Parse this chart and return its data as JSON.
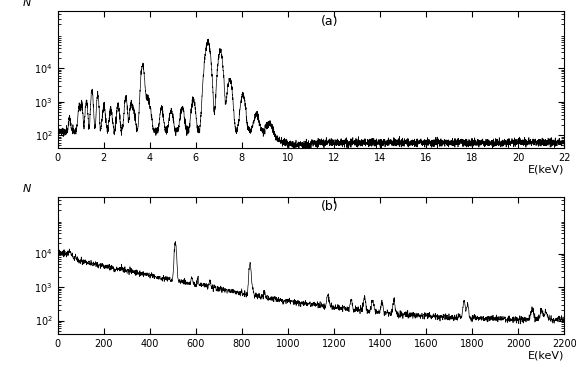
{
  "plot_a": {
    "label": "(a)",
    "xlabel": "E(keV)",
    "ylabel": "N",
    "xlim": [
      0,
      22
    ],
    "ylim_log": [
      40,
      500000
    ],
    "xticks": [
      0,
      2,
      4,
      6,
      8,
      10,
      12,
      14,
      16,
      18,
      20,
      22
    ],
    "yticks_log": [
      100,
      1000,
      10000
    ]
  },
  "plot_b": {
    "label": "(b)",
    "xlabel": "E(keV)",
    "ylabel": "N",
    "xlim": [
      0,
      2200
    ],
    "ylim_log": [
      40,
      500000
    ],
    "xticks": [
      0,
      200,
      400,
      600,
      800,
      1000,
      1200,
      1400,
      1600,
      1800,
      2000,
      2200
    ],
    "yticks_log": [
      100,
      1000,
      10000
    ]
  },
  "line_color": "#000000",
  "line_width": 0.5,
  "bg_color": "#ffffff",
  "tick_fontsize": 7,
  "label_fontsize": 8,
  "annot_fontsize": 9
}
